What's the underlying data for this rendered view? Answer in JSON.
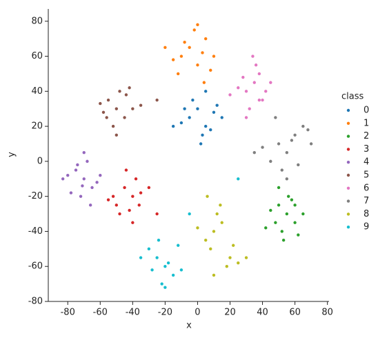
{
  "chart_data": {
    "type": "scatter",
    "x_label": "x",
    "y_label": "y",
    "legend_title": "class",
    "xlim": [
      -92,
      81
    ],
    "ylim": [
      -80,
      87
    ],
    "xticks": [
      -80,
      -60,
      -40,
      -20,
      0,
      20,
      40,
      60,
      80
    ],
    "yticks": [
      -80,
      -60,
      -40,
      -20,
      0,
      20,
      40,
      60,
      80
    ],
    "series": [
      {
        "name": "0",
        "color": "#1f77b4",
        "x": [
          -5,
          0,
          5,
          10,
          -10,
          3,
          -3,
          8,
          15,
          -8,
          2,
          12,
          -15,
          5
        ],
        "y": [
          25,
          30,
          20,
          28,
          22,
          15,
          35,
          18,
          25,
          30,
          10,
          32,
          20,
          40
        ]
      },
      {
        "name": "1",
        "color": "#ff7f0e",
        "x": [
          -10,
          -5,
          0,
          5,
          -15,
          -2,
          3,
          8,
          -8,
          -20,
          0,
          10,
          -12,
          4
        ],
        "y": [
          60,
          65,
          55,
          70,
          58,
          75,
          62,
          52,
          68,
          65,
          78,
          60,
          50,
          45
        ]
      },
      {
        "name": "2",
        "color": "#2ca02c",
        "x": [
          50,
          55,
          60,
          45,
          52,
          58,
          62,
          48,
          56,
          65,
          42,
          53,
          60,
          50
        ],
        "y": [
          -25,
          -30,
          -35,
          -28,
          -40,
          -22,
          -42,
          -35,
          -20,
          -30,
          -38,
          -45,
          -25,
          -15
        ]
      },
      {
        "name": "3",
        "color": "#d62728",
        "x": [
          -40,
          -45,
          -50,
          -35,
          -42,
          -38,
          -55,
          -48,
          -30,
          -44,
          -36,
          -52,
          -25,
          -40
        ],
        "y": [
          -20,
          -15,
          -25,
          -18,
          -28,
          -10,
          -22,
          -30,
          -15,
          -5,
          -25,
          -20,
          -30,
          -35
        ]
      },
      {
        "name": "4",
        "color": "#9467bd",
        "x": [
          -70,
          -75,
          -65,
          -80,
          -72,
          -68,
          -62,
          -78,
          -70,
          -66,
          -74,
          -60,
          -83,
          -71
        ],
        "y": [
          -10,
          -5,
          -15,
          -8,
          -20,
          0,
          -12,
          -18,
          5,
          -25,
          -2,
          -8,
          -10,
          -14
        ]
      },
      {
        "name": "5",
        "color": "#8c564b",
        "x": [
          -50,
          -55,
          -45,
          -60,
          -52,
          -48,
          -40,
          -58,
          -44,
          -35,
          -50,
          -25,
          -56,
          -42
        ],
        "y": [
          30,
          35,
          25,
          33,
          20,
          40,
          30,
          28,
          38,
          32,
          15,
          35,
          25,
          42
        ]
      },
      {
        "name": "6",
        "color": "#e377c2",
        "x": [
          30,
          35,
          40,
          25,
          38,
          32,
          28,
          42,
          36,
          20,
          34,
          45,
          30,
          38
        ],
        "y": [
          40,
          45,
          35,
          42,
          50,
          30,
          48,
          40,
          55,
          38,
          60,
          45,
          25,
          35
        ]
      },
      {
        "name": "7",
        "color": "#7f7f7f",
        "x": [
          50,
          55,
          60,
          45,
          65,
          52,
          58,
          40,
          62,
          68,
          48,
          55,
          35,
          70
        ],
        "y": [
          10,
          5,
          15,
          0,
          20,
          -5,
          12,
          8,
          -2,
          18,
          25,
          -10,
          5,
          10
        ]
      },
      {
        "name": "8",
        "color": "#bcbd22",
        "x": [
          10,
          15,
          5,
          20,
          12,
          8,
          18,
          25,
          14,
          0,
          22,
          10,
          30,
          6
        ],
        "y": [
          -40,
          -35,
          -45,
          -55,
          -30,
          -50,
          -60,
          -58,
          -25,
          -38,
          -48,
          -65,
          -55,
          -20
        ]
      },
      {
        "name": "9",
        "color": "#17becf",
        "x": [
          -20,
          -25,
          -15,
          -30,
          -22,
          -18,
          -28,
          -12,
          -24,
          -35,
          -20,
          -10,
          25,
          -5
        ],
        "y": [
          -60,
          -55,
          -65,
          -50,
          -70,
          -58,
          -62,
          -48,
          -45,
          -55,
          -72,
          -62,
          -10,
          -30
        ]
      }
    ]
  }
}
